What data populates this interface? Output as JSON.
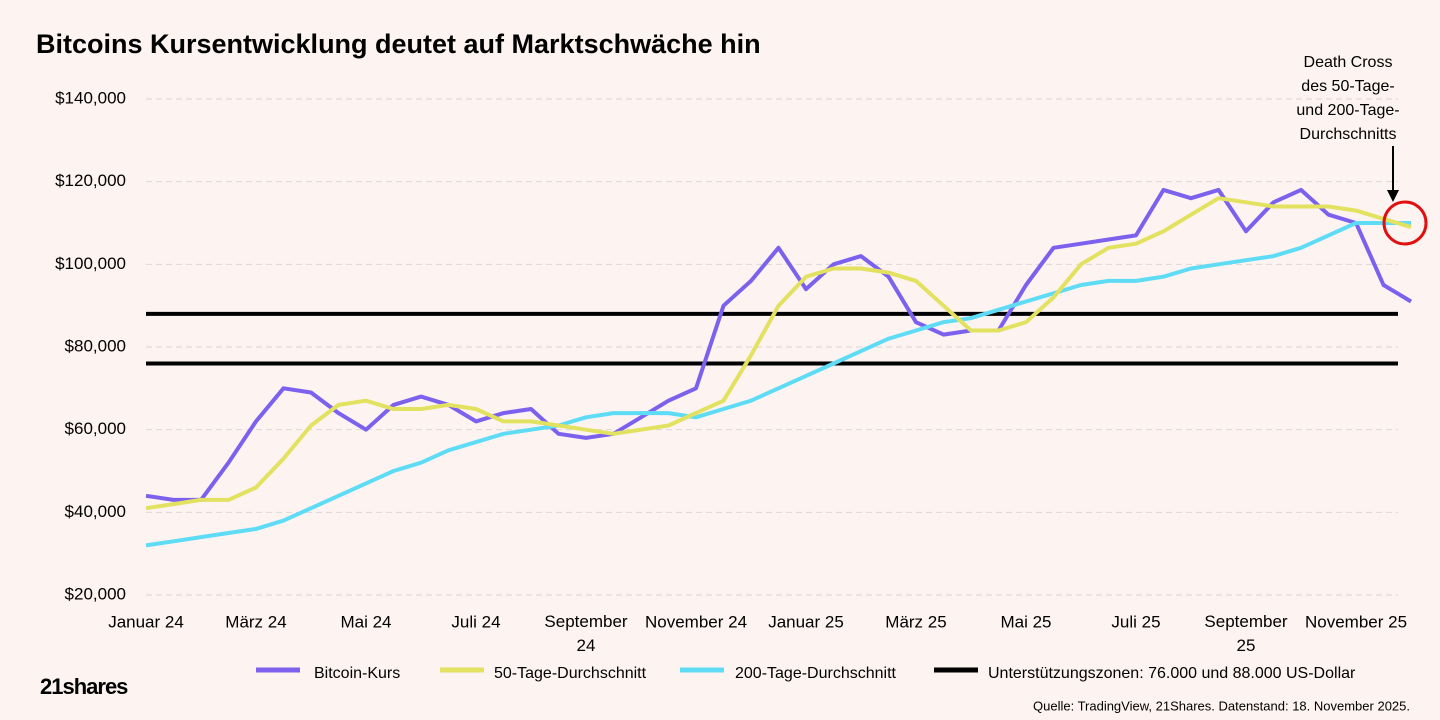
{
  "chart_data": {
    "type": "line",
    "title": "Bitcoins Kursentwicklung deutet auf Marktschwäche hin",
    "categories": [
      "Januar 24",
      null,
      null,
      null,
      "März 24",
      null,
      null,
      null,
      "Mai 24",
      null,
      null,
      null,
      "Juli 24",
      null,
      null,
      null,
      "September 24",
      null,
      null,
      null,
      "November 24",
      null,
      null,
      null,
      "Januar 25",
      null,
      null,
      null,
      "März 25",
      null,
      null,
      null,
      "Mai 25",
      null,
      null,
      null,
      "Juli 25",
      null,
      null,
      null,
      "September 25",
      null,
      null,
      null,
      "November 25",
      null,
      null
    ],
    "series": [
      {
        "name": "Bitcoin-Kurs",
        "color": "#7b61ee",
        "values": [
          44000,
          43000,
          43000,
          52000,
          62000,
          70000,
          69000,
          64000,
          60000,
          66000,
          68000,
          66000,
          62000,
          64000,
          65000,
          59000,
          58000,
          59000,
          63000,
          67000,
          70000,
          90000,
          96000,
          104000,
          94000,
          100000,
          102000,
          97000,
          86000,
          83000,
          84000,
          84000,
          95000,
          104000,
          105000,
          106000,
          107000,
          118000,
          116000,
          118000,
          108000,
          115000,
          118000,
          112000,
          110000,
          95000,
          91000
        ]
      },
      {
        "name": "50-Tage-Durchschnitt",
        "color": "#e3e160",
        "values": [
          41000,
          42000,
          43000,
          43000,
          46000,
          53000,
          61000,
          66000,
          67000,
          65000,
          65000,
          66000,
          65000,
          62000,
          62000,
          61000,
          60000,
          59000,
          60000,
          61000,
          64000,
          67000,
          78000,
          90000,
          97000,
          99000,
          99000,
          98000,
          96000,
          90000,
          84000,
          84000,
          86000,
          92000,
          100000,
          104000,
          105000,
          108000,
          112000,
          116000,
          115000,
          114000,
          114000,
          114000,
          113000,
          111000,
          109000
        ]
      },
      {
        "name": "200-Tage-Durchschnitt",
        "color": "#5fdcf5",
        "values": [
          32000,
          33000,
          34000,
          35000,
          36000,
          38000,
          41000,
          44000,
          47000,
          50000,
          52000,
          55000,
          57000,
          59000,
          60000,
          61000,
          63000,
          64000,
          64000,
          64000,
          63000,
          65000,
          67000,
          70000,
          73000,
          76000,
          79000,
          82000,
          84000,
          86000,
          87000,
          89000,
          91000,
          93000,
          95000,
          96000,
          96000,
          97000,
          99000,
          100000,
          101000,
          102000,
          104000,
          107000,
          110000,
          110000,
          110000
        ]
      }
    ],
    "support_lines": {
      "name": "Unterstützungszonen: 76.000 und 88.000 US-Dollar",
      "color": "#000000",
      "values": [
        76000,
        88000
      ]
    },
    "ylim": [
      20000,
      140000
    ],
    "yticks": [
      {
        "value": 20000,
        "label": "$20,000"
      },
      {
        "value": 40000,
        "label": "$40,000"
      },
      {
        "value": 60000,
        "label": "$60,000"
      },
      {
        "value": 80000,
        "label": "$80,000"
      },
      {
        "value": 100000,
        "label": "$100,000"
      },
      {
        "value": 120000,
        "label": "$120,000"
      },
      {
        "value": 140000,
        "label": "$140,000"
      }
    ],
    "grid": true,
    "annotation": [
      "Death Cross",
      "des 50-Tage-",
      "und 200-Tage-",
      "Durchschnitts"
    ],
    "source": "Quelle: TradingView, 21Shares. Datenstand: 18. November 2025.",
    "logo": "21shares"
  }
}
